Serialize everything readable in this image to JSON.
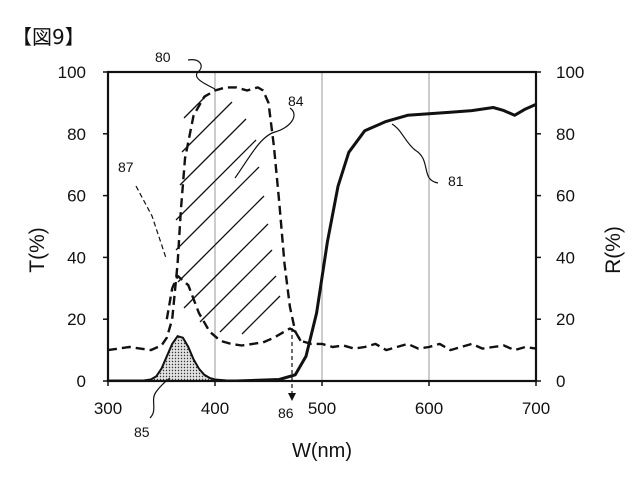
{
  "figure_label": "【図9】",
  "chart_data": {
    "type": "line",
    "title": "",
    "xlabel": "W(nm)",
    "ylabel_left": "T(%)",
    "ylabel_right": "R(%)",
    "xlim": [
      300,
      700
    ],
    "ylim": [
      0,
      100
    ],
    "xticks": [
      "300",
      "400",
      "500",
      "600",
      "700"
    ],
    "yticks_left": [
      "0",
      "20",
      "40",
      "60",
      "80",
      "100"
    ],
    "yticks_right": [
      "0",
      "20",
      "40",
      "60",
      "80",
      "100"
    ],
    "grid": "vertical",
    "series": [
      {
        "name": "81",
        "style": "solid",
        "x": [
          300,
          420,
          460,
          475,
          485,
          495,
          505,
          515,
          525,
          540,
          560,
          580,
          600,
          620,
          640,
          660,
          670,
          680,
          690,
          700
        ],
        "values": [
          0,
          0,
          0.5,
          2,
          8,
          22,
          45,
          63,
          74,
          81,
          84,
          86,
          86.5,
          87,
          87.5,
          88.5,
          87.5,
          86,
          88,
          89.5
        ]
      },
      {
        "name": "80",
        "style": "dashed",
        "x": [
          300,
          320,
          340,
          350,
          355,
          360,
          365,
          368,
          372,
          380,
          390,
          400,
          410,
          420,
          430,
          440,
          445,
          450,
          455,
          460,
          465,
          470,
          475,
          480,
          490,
          500,
          510,
          520,
          530,
          540,
          550,
          560,
          570,
          580,
          590,
          600,
          610,
          620,
          630,
          640,
          650,
          660,
          670,
          680,
          690,
          700
        ],
        "values": [
          10,
          11,
          10,
          11.5,
          14,
          20,
          38,
          55,
          72,
          86,
          92,
          94,
          95,
          95,
          94,
          95,
          94,
          90,
          76,
          58,
          38,
          24,
          16,
          13,
          12,
          12,
          11,
          11.5,
          10.5,
          11,
          12,
          10,
          11,
          12,
          10.5,
          11,
          12,
          10,
          11,
          12,
          10.5,
          11,
          11.5,
          10,
          11,
          10.5
        ]
      },
      {
        "name": "87",
        "style": "dashed",
        "x": [
          355,
          360,
          365,
          375,
          385,
          395,
          405,
          415,
          425,
          435,
          445,
          455,
          465,
          470,
          475,
          480
        ],
        "values": [
          20,
          30,
          34,
          31,
          22,
          16,
          13,
          12,
          11.5,
          12,
          12.5,
          14,
          16,
          17,
          16,
          13
        ]
      },
      {
        "name": "85",
        "style": "filled-dotted",
        "x": [
          300,
          330,
          340,
          345,
          350,
          355,
          360,
          365,
          370,
          375,
          380,
          385,
          390,
          395,
          400,
          410,
          420,
          430,
          700
        ],
        "values": [
          0,
          0,
          0.5,
          1.5,
          4,
          8,
          12,
          14.5,
          14,
          11,
          7,
          4,
          2,
          1,
          0.5,
          0.2,
          0,
          0,
          0
        ]
      }
    ],
    "annotations": [
      "80",
      "81",
      "84",
      "85",
      "86",
      "87"
    ]
  }
}
